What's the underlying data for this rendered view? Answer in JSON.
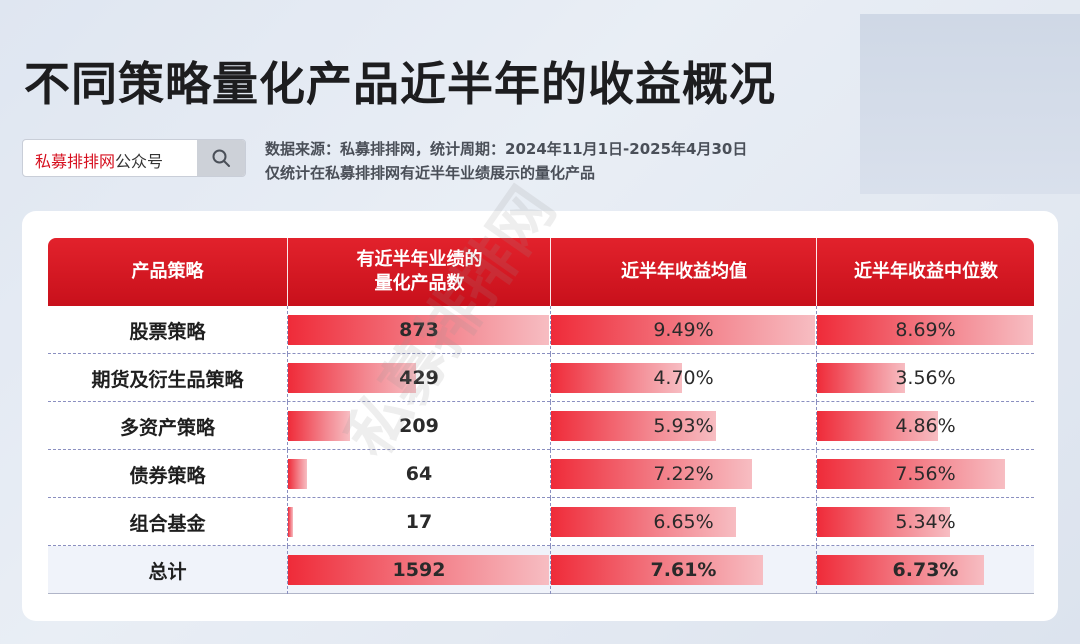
{
  "header": {
    "title": "不同策略量化产品近半年的收益概况",
    "search_brand": "私募排排网",
    "search_suffix": "公众号",
    "meta_line1": "数据来源：私募排排网，统计周期：2024年11月1日-2025年4月30日",
    "meta_line2": "仅统计在私募排排网有近半年业绩展示的量化产品"
  },
  "watermark": "私募排排网",
  "table": {
    "headers": [
      "产品策略",
      "有近半年业绩的\n量化产品数",
      "近半年收益均值",
      "近半年收益中位数"
    ],
    "rows": [
      {
        "strategy": "股票策略",
        "count": "873",
        "mean": "9.49%",
        "median": "8.69%"
      },
      {
        "strategy": "期货及衍生品策略",
        "count": "429",
        "mean": "4.70%",
        "median": "3.56%"
      },
      {
        "strategy": "多资产策略",
        "count": "209",
        "mean": "5.93%",
        "median": "4.86%"
      },
      {
        "strategy": "债券策略",
        "count": "64",
        "mean": "7.22%",
        "median": "7.56%"
      },
      {
        "strategy": "组合基金",
        "count": "17",
        "mean": "6.65%",
        "median": "5.34%"
      },
      {
        "strategy": "总计",
        "count": "1592",
        "mean": "7.61%",
        "median": "6.73%"
      }
    ]
  },
  "chart_data": {
    "type": "table",
    "title": "不同策略量化产品近半年的收益概况",
    "columns": [
      "产品策略",
      "有近半年业绩的量化产品数",
      "近半年收益均值",
      "近半年收益中位数"
    ],
    "categories": [
      "股票策略",
      "期货及衍生品策略",
      "多资产策略",
      "债券策略",
      "组合基金",
      "总计"
    ],
    "series": [
      {
        "name": "有近半年业绩的量化产品数",
        "values": [
          873,
          429,
          209,
          64,
          17,
          1592
        ]
      },
      {
        "name": "近半年收益均值",
        "values": [
          9.49,
          4.7,
          5.93,
          7.22,
          6.65,
          7.61
        ]
      },
      {
        "name": "近半年收益中位数",
        "values": [
          8.69,
          3.56,
          4.86,
          7.56,
          5.34,
          6.73
        ]
      }
    ],
    "bar_color": "#ef2b39",
    "header_color": "#d6101f"
  }
}
